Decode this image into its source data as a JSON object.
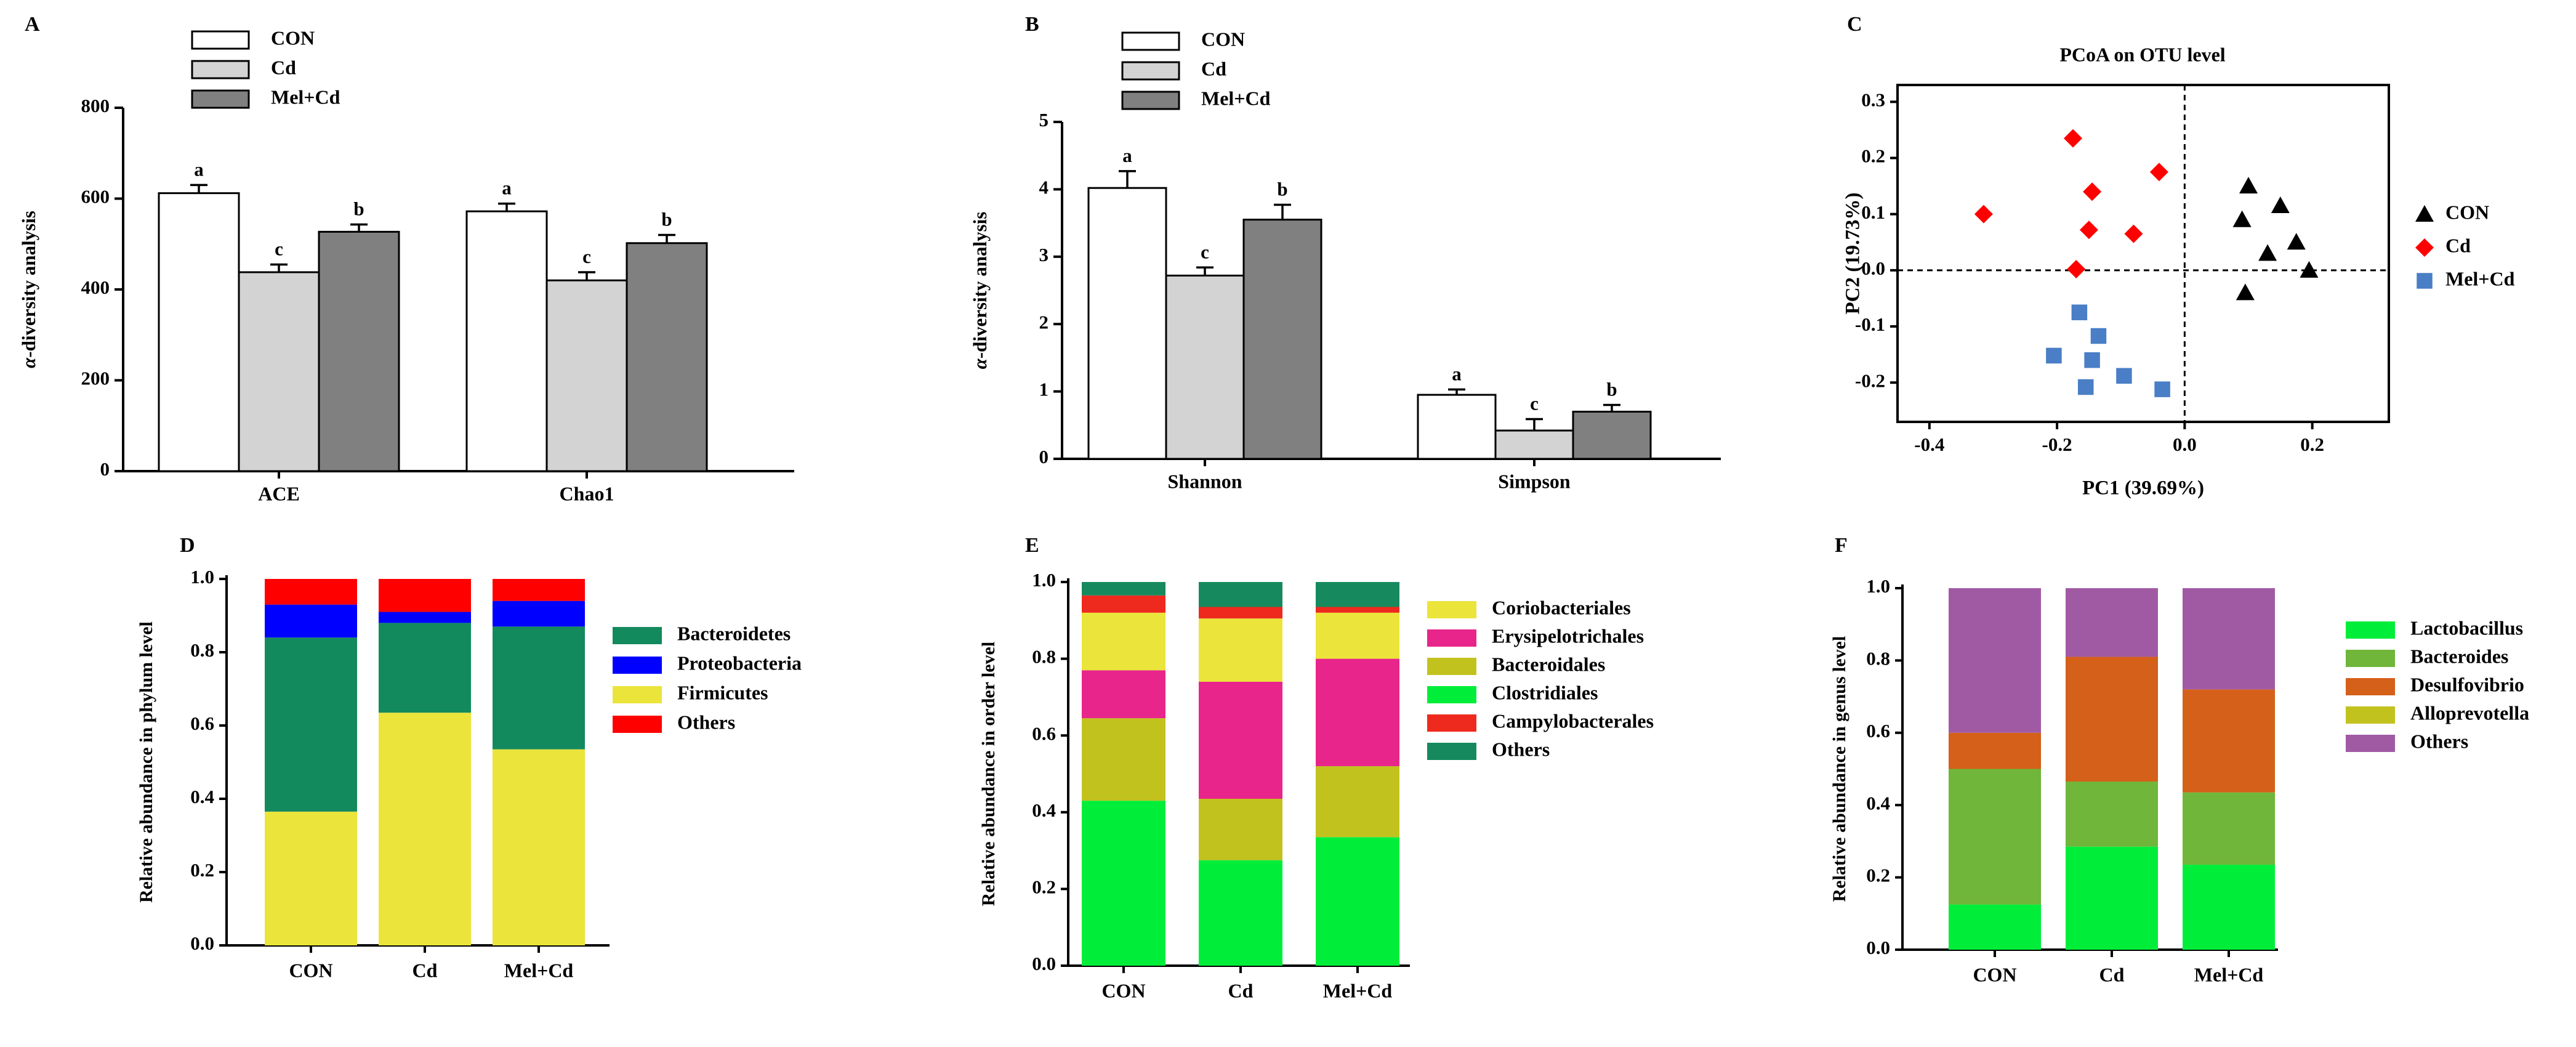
{
  "chart_data": [
    {
      "panel": "A",
      "type": "bar",
      "categories": [
        "ACE",
        "Chao1"
      ],
      "series": [
        {
          "name": "CON",
          "color": "#ffffff",
          "values": [
            612,
            572
          ],
          "errors": [
            18,
            17
          ],
          "letters": [
            "a",
            "a"
          ]
        },
        {
          "name": "Cd",
          "color": "#d3d3d3",
          "values": [
            438,
            420
          ],
          "errors": [
            17,
            18
          ],
          "letters": [
            "c",
            "c"
          ]
        },
        {
          "name": "Mel+Cd",
          "color": "#808080",
          "values": [
            527,
            502
          ],
          "errors": [
            16,
            18
          ],
          "letters": [
            "b",
            "b"
          ]
        }
      ],
      "ylabel": "α-diversity analysis",
      "ylim": [
        0,
        800
      ],
      "yticks": [
        "0",
        "200",
        "400",
        "600",
        "800"
      ]
    },
    {
      "panel": "B",
      "type": "bar",
      "categories": [
        "Shannon",
        "Simpson"
      ],
      "series": [
        {
          "name": "CON",
          "color": "#ffffff",
          "values": [
            4.02,
            0.95
          ],
          "errors": [
            0.25,
            0.08
          ],
          "letters": [
            "a",
            "a"
          ]
        },
        {
          "name": "Cd",
          "color": "#d3d3d3",
          "values": [
            2.72,
            0.42
          ],
          "errors": [
            0.12,
            0.17
          ],
          "letters": [
            "c",
            "c"
          ]
        },
        {
          "name": "Mel+Cd",
          "color": "#808080",
          "values": [
            3.55,
            0.7
          ],
          "errors": [
            0.22,
            0.1
          ],
          "letters": [
            "b",
            "b"
          ]
        }
      ],
      "ylabel": "α-diversity analysis",
      "ylim": [
        0,
        5
      ],
      "yticks": [
        "0",
        "1",
        "2",
        "3",
        "4",
        "5"
      ]
    },
    {
      "panel": "C",
      "type": "scatter",
      "title": "PCoA on OTU level",
      "xlabel": "PC1 (39.69%)",
      "ylabel": "PC2 (19.73%)",
      "xlim": [
        -0.45,
        0.32
      ],
      "ylim": [
        -0.27,
        0.33
      ],
      "xticks": [
        "-0.4",
        "-0.2",
        "0.0",
        "0.2"
      ],
      "yticks": [
        "-0.2",
        "-0.1",
        "0.0",
        "0.1",
        "0.2",
        "0.3"
      ],
      "series": [
        {
          "name": "CON",
          "marker": "triangle",
          "color": "#000000",
          "points": [
            [
              0.1,
              0.15
            ],
            [
              0.15,
              0.115
            ],
            [
              0.09,
              0.09
            ],
            [
              0.175,
              0.05
            ],
            [
              0.13,
              0.03
            ],
            [
              0.195,
              0.0
            ],
            [
              0.095,
              -0.04
            ]
          ]
        },
        {
          "name": "Cd",
          "marker": "diamond",
          "color": "#ff0000",
          "points": [
            [
              -0.175,
              0.235
            ],
            [
              -0.04,
              0.175
            ],
            [
              -0.145,
              0.14
            ],
            [
              -0.315,
              0.1
            ],
            [
              -0.15,
              0.072
            ],
            [
              -0.08,
              0.065
            ],
            [
              -0.17,
              0.002
            ]
          ]
        },
        {
          "name": "Mel+Cd",
          "marker": "square",
          "color": "#4a7ec6",
          "points": [
            [
              -0.165,
              -0.075
            ],
            [
              -0.135,
              -0.117
            ],
            [
              -0.205,
              -0.152
            ],
            [
              -0.145,
              -0.16
            ],
            [
              -0.095,
              -0.188
            ],
            [
              -0.155,
              -0.208
            ],
            [
              -0.035,
              -0.212
            ]
          ]
        }
      ]
    },
    {
      "panel": "D",
      "type": "bar",
      "stacked": true,
      "categories": [
        "CON",
        "Cd",
        "Mel+Cd"
      ],
      "ylabel": "Relative abundance in phylum level",
      "ylim": [
        0,
        1
      ],
      "yticks": [
        "0.0",
        "0.2",
        "0.4",
        "0.6",
        "0.8",
        "1.0"
      ],
      "legend": [
        "Bacteroidetes",
        "Proteobacteria",
        "Firmicutes",
        "Others"
      ],
      "series": [
        {
          "name": "Firmicutes",
          "color": "#ebe43a",
          "values": [
            0.365,
            0.635,
            0.535
          ]
        },
        {
          "name": "Bacteroidetes",
          "color": "#138a5e",
          "values": [
            0.475,
            0.245,
            0.335
          ]
        },
        {
          "name": "Proteobacteria",
          "color": "#0000ff",
          "values": [
            0.09,
            0.03,
            0.07
          ]
        },
        {
          "name": "Others",
          "color": "#ff0000",
          "values": [
            0.07,
            0.09,
            0.06
          ]
        }
      ]
    },
    {
      "panel": "E",
      "type": "bar",
      "stacked": true,
      "categories": [
        "CON",
        "Cd",
        "Mel+Cd"
      ],
      "ylabel": "Relative abundance in order level",
      "ylim": [
        0,
        1
      ],
      "yticks": [
        "0.0",
        "0.2",
        "0.4",
        "0.6",
        "0.8",
        "1.0"
      ],
      "legend": [
        "Coriobacteriales",
        "Erysipelotrichales",
        "Bacteroidales",
        "Clostridiales",
        "Campylobacterales",
        "Others"
      ],
      "series": [
        {
          "name": "Clostridiales",
          "color": "#00ee3a",
          "values": [
            0.43,
            0.275,
            0.335
          ]
        },
        {
          "name": "Bacteroidales",
          "color": "#c2c21f",
          "values": [
            0.215,
            0.16,
            0.185
          ]
        },
        {
          "name": "Erysipelotrichales",
          "color": "#e8258a",
          "values": [
            0.125,
            0.305,
            0.28
          ]
        },
        {
          "name": "Coriobacteriales",
          "color": "#ebe43a",
          "values": [
            0.15,
            0.165,
            0.12
          ]
        },
        {
          "name": "Campylobacterales",
          "color": "#ee2a1e",
          "values": [
            0.045,
            0.03,
            0.015
          ]
        },
        {
          "name": "Others",
          "color": "#168a5e",
          "values": [
            0.035,
            0.065,
            0.065
          ]
        }
      ]
    },
    {
      "panel": "F",
      "type": "bar",
      "stacked": true,
      "categories": [
        "CON",
        "Cd",
        "Mel+Cd"
      ],
      "ylabel": "Relative abundance in genus level",
      "ylim": [
        0,
        1
      ],
      "yticks": [
        "0.0",
        "0.2",
        "0.4",
        "0.6",
        "0.8",
        "1.0"
      ],
      "legend": [
        "Lactobacillus",
        "Bacteroides",
        "Desulfovibrio",
        "Alloprevotella",
        "Others"
      ],
      "series": [
        {
          "name": "Lactobacillus",
          "color": "#00ee3a",
          "values": [
            0.125,
            0.285,
            0.235
          ]
        },
        {
          "name": "Bacteroides",
          "color": "#6fb63a",
          "values": [
            0.375,
            0.18,
            0.2
          ]
        },
        {
          "name": "Alloprevotella",
          "color": "#c2c21f",
          "values": [
            0.0,
            0.0,
            0.0
          ]
        },
        {
          "name": "Desulfovibrio",
          "color": "#d4601a",
          "values": [
            0.1,
            0.345,
            0.285
          ]
        },
        {
          "name": "Others",
          "color": "#a05aa4",
          "values": [
            0.4,
            0.19,
            0.28
          ]
        }
      ]
    }
  ]
}
